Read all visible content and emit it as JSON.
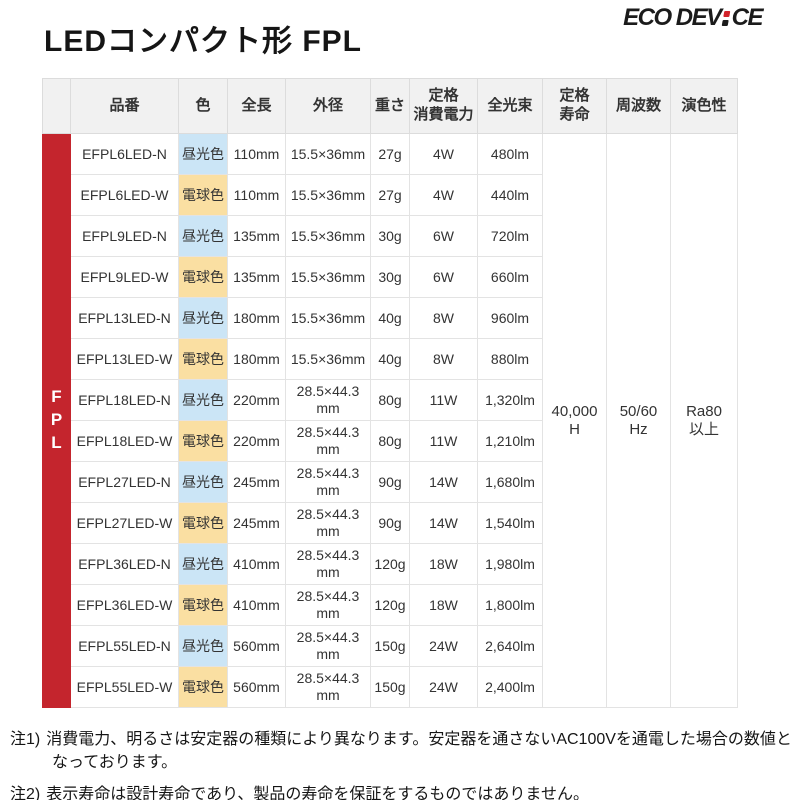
{
  "page": {
    "title": "LEDコンパクト形 FPL"
  },
  "logo": {
    "text_left": "ECO DEV",
    "text_right": "CE",
    "dot_top_color": "#d2232a",
    "dot_bottom_color": "#1b1b1b"
  },
  "table": {
    "row_group_label": "FPL",
    "columns": [
      "品番",
      "色",
      "全長",
      "外径",
      "重さ",
      "定格\n消費電力",
      "全光束",
      "定格\n寿命",
      "周波数",
      "演色性"
    ],
    "rows": [
      {
        "model": "EFPL6LED-N",
        "color": "昼光色",
        "color_type": "daylight",
        "length": "110mm",
        "diameter": "15.5×36mm",
        "weight": "27g",
        "power": "4W",
        "flux": "480lm"
      },
      {
        "model": "EFPL6LED-W",
        "color": "電球色",
        "color_type": "bulb",
        "length": "110mm",
        "diameter": "15.5×36mm",
        "weight": "27g",
        "power": "4W",
        "flux": "440lm"
      },
      {
        "model": "EFPL9LED-N",
        "color": "昼光色",
        "color_type": "daylight",
        "length": "135mm",
        "diameter": "15.5×36mm",
        "weight": "30g",
        "power": "6W",
        "flux": "720lm"
      },
      {
        "model": "EFPL9LED-W",
        "color": "電球色",
        "color_type": "bulb",
        "length": "135mm",
        "diameter": "15.5×36mm",
        "weight": "30g",
        "power": "6W",
        "flux": "660lm"
      },
      {
        "model": "EFPL13LED-N",
        "color": "昼光色",
        "color_type": "daylight",
        "length": "180mm",
        "diameter": "15.5×36mm",
        "weight": "40g",
        "power": "8W",
        "flux": "960lm"
      },
      {
        "model": "EFPL13LED-W",
        "color": "電球色",
        "color_type": "bulb",
        "length": "180mm",
        "diameter": "15.5×36mm",
        "weight": "40g",
        "power": "8W",
        "flux": "880lm"
      },
      {
        "model": "EFPL18LED-N",
        "color": "昼光色",
        "color_type": "daylight",
        "length": "220mm",
        "diameter": "28.5×44.3\nmm",
        "weight": "80g",
        "power": "11W",
        "flux": "1,320lm"
      },
      {
        "model": "EFPL18LED-W",
        "color": "電球色",
        "color_type": "bulb",
        "length": "220mm",
        "diameter": "28.5×44.3\nmm",
        "weight": "80g",
        "power": "11W",
        "flux": "1,210lm"
      },
      {
        "model": "EFPL27LED-N",
        "color": "昼光色",
        "color_type": "daylight",
        "length": "245mm",
        "diameter": "28.5×44.3\nmm",
        "weight": "90g",
        "power": "14W",
        "flux": "1,680lm"
      },
      {
        "model": "EFPL27LED-W",
        "color": "電球色",
        "color_type": "bulb",
        "length": "245mm",
        "diameter": "28.5×44.3\nmm",
        "weight": "90g",
        "power": "14W",
        "flux": "1,540lm"
      },
      {
        "model": "EFPL36LED-N",
        "color": "昼光色",
        "color_type": "daylight",
        "length": "410mm",
        "diameter": "28.5×44.3\nmm",
        "weight": "120g",
        "power": "18W",
        "flux": "1,980lm"
      },
      {
        "model": "EFPL36LED-W",
        "color": "電球色",
        "color_type": "bulb",
        "length": "410mm",
        "diameter": "28.5×44.3\nmm",
        "weight": "120g",
        "power": "18W",
        "flux": "1,800lm"
      },
      {
        "model": "EFPL55LED-N",
        "color": "昼光色",
        "color_type": "daylight",
        "length": "560mm",
        "diameter": "28.5×44.3\nmm",
        "weight": "150g",
        "power": "24W",
        "flux": "2,640lm"
      },
      {
        "model": "EFPL55LED-W",
        "color": "電球色",
        "color_type": "bulb",
        "length": "560mm",
        "diameter": "28.5×44.3\nmm",
        "weight": "150g",
        "power": "24W",
        "flux": "2,400lm"
      }
    ],
    "merged": {
      "life": "40,000\nH",
      "frequency": "50/60\nHz",
      "color_rendering": "Ra80\n以上"
    },
    "colors": {
      "group_bg": "#c4252d",
      "daylight_bg": "#cbe5f6",
      "bulb_bg": "#fadfa2",
      "header_bg": "#f1f1f1"
    }
  },
  "notes": [
    {
      "label": "注1)",
      "text": "消費電力、明るさは安定器の種類により異なります。安定器を通さないAC100Vを通電した場合の数値となっております。"
    },
    {
      "label": "注2)",
      "text": "表示寿命は設計寿命であり、製品の寿命を保証をするものではありません。"
    }
  ]
}
